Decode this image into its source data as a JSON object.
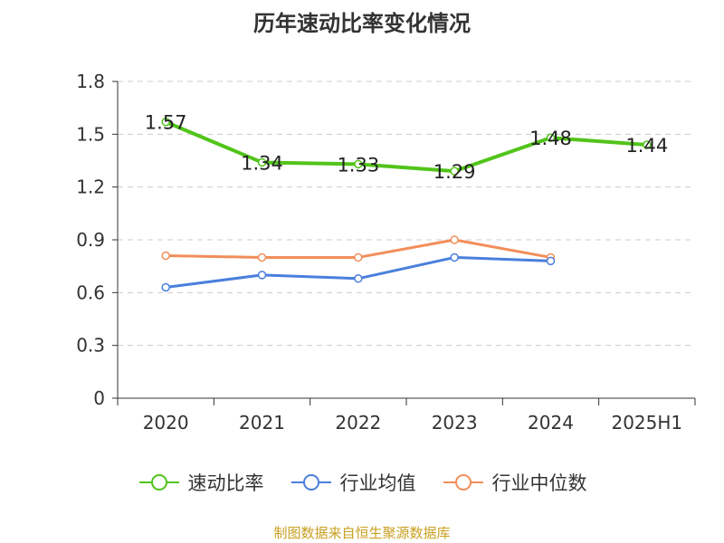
{
  "title": "历年速动比率变化情况",
  "source": "制图数据来自恒生聚源数据库",
  "chart_data": {
    "type": "line",
    "categories": [
      "2020",
      "2021",
      "2022",
      "2023",
      "2024",
      "2025H1"
    ],
    "y_ticks": [
      "0",
      "0.3",
      "0.6",
      "0.9",
      "1.2",
      "1.5",
      "1.8"
    ],
    "ylim": [
      0,
      1.8
    ],
    "grid": true,
    "legend_position": "bottom",
    "series": [
      {
        "name": "速动比率",
        "color": "#52c41a",
        "values": [
          1.57,
          1.34,
          1.33,
          1.29,
          1.48,
          1.44
        ],
        "labels": [
          "1.57",
          "1.34",
          "1.33",
          "1.29",
          "1.48",
          "1.44"
        ]
      },
      {
        "name": "行业均值",
        "color": "#4a7fdc",
        "values": [
          0.63,
          0.7,
          0.68,
          0.8,
          0.78,
          null
        ]
      },
      {
        "name": "行业中位数",
        "color": "#f28e5a",
        "values": [
          0.81,
          0.8,
          0.8,
          0.9,
          0.8,
          null
        ]
      }
    ]
  }
}
